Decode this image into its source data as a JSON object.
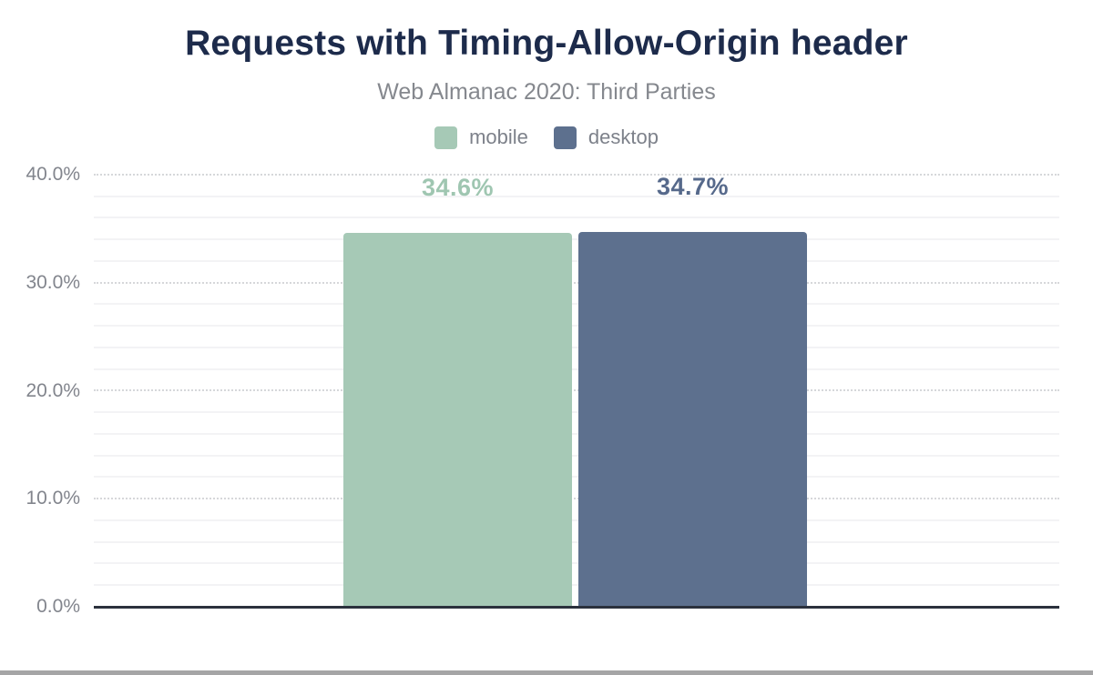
{
  "figure": {
    "title": "Requests with Timing-Allow-Origin header",
    "subtitle": "Web Almanac 2020: Third Parties"
  },
  "chart_data": {
    "type": "bar",
    "title": "Requests with Timing-Allow-Origin header",
    "subtitle": "Web Almanac 2020: Third Parties",
    "categories": [
      "mobile",
      "desktop"
    ],
    "series": [
      {
        "name": "mobile",
        "value": 34.6,
        "label": "34.6%",
        "color": "#a6c9b6",
        "label_color": "#9fc6b1"
      },
      {
        "name": "desktop",
        "value": 34.7,
        "label": "34.7%",
        "color": "#5d708e",
        "label_color": "#56698b"
      }
    ],
    "xlabel": "",
    "ylabel": "",
    "ylim": [
      0,
      40
    ],
    "y_major_step": 10,
    "y_minor_step": 2,
    "y_ticks": [
      {
        "value": 0,
        "label": "0.0%"
      },
      {
        "value": 10,
        "label": "10.0%"
      },
      {
        "value": 20,
        "label": "20.0%"
      },
      {
        "value": 30,
        "label": "30.0%"
      },
      {
        "value": 40,
        "label": "40.0%"
      }
    ],
    "grid": true,
    "legend_position": "top"
  },
  "colors": {
    "title": "#1d2b4b",
    "subtitle": "#85888e",
    "axis_label": "#82858d",
    "axis_line": "#2b313d",
    "major_grid": "#d6d7da",
    "minor_grid": "#f3f3f5",
    "background": "#ffffff",
    "bottom_divider": "#a5a5a6"
  }
}
